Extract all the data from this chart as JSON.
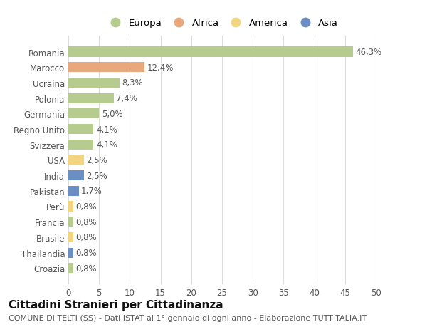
{
  "countries": [
    "Romania",
    "Marocco",
    "Ucraina",
    "Polonia",
    "Germania",
    "Regno Unito",
    "Svizzera",
    "USA",
    "India",
    "Pakistan",
    "Perù",
    "Francia",
    "Brasile",
    "Thailandia",
    "Croazia"
  ],
  "values": [
    46.3,
    12.4,
    8.3,
    7.4,
    5.0,
    4.1,
    4.1,
    2.5,
    2.5,
    1.7,
    0.8,
    0.8,
    0.8,
    0.8,
    0.8
  ],
  "labels": [
    "46,3%",
    "12,4%",
    "8,3%",
    "7,4%",
    "5,0%",
    "4,1%",
    "4,1%",
    "2,5%",
    "2,5%",
    "1,7%",
    "0,8%",
    "0,8%",
    "0,8%",
    "0,8%",
    "0,8%"
  ],
  "colors": [
    "#b5cc8e",
    "#e8a87c",
    "#b5cc8e",
    "#b5cc8e",
    "#b5cc8e",
    "#b5cc8e",
    "#b5cc8e",
    "#f2d57e",
    "#6b8fc4",
    "#6b8fc4",
    "#f2d57e",
    "#b5cc8e",
    "#f2d57e",
    "#6b8fc4",
    "#b5cc8e"
  ],
  "continent_colors": {
    "Europa": "#b5cc8e",
    "Africa": "#e8a87c",
    "America": "#f2d57e",
    "Asia": "#6b8fc4"
  },
  "title": "Cittadini Stranieri per Cittadinanza",
  "subtitle": "COMUNE DI TELTI (SS) - Dati ISTAT al 1° gennaio di ogni anno - Elaborazione TUTTITALIA.IT",
  "xlim": [
    0,
    50
  ],
  "xticks": [
    0,
    5,
    10,
    15,
    20,
    25,
    30,
    35,
    40,
    45,
    50
  ],
  "background_color": "#ffffff",
  "grid_color": "#dddddd",
  "bar_height": 0.65,
  "label_fontsize": 8.5,
  "tick_fontsize": 8.5,
  "title_fontsize": 11,
  "subtitle_fontsize": 8
}
